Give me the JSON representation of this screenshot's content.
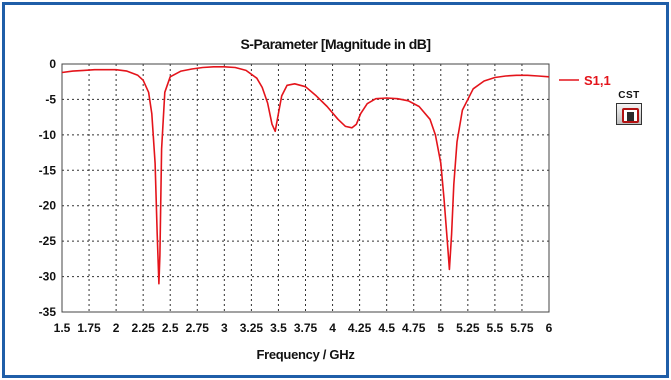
{
  "chart_data": {
    "type": "line",
    "title": "S-Parameter [Magnitude in dB]",
    "xlabel": "Frequency / GHz",
    "ylabel": "",
    "xlim": [
      1.5,
      6
    ],
    "ylim": [
      -35,
      0
    ],
    "x_ticks": [
      "1.5",
      "1.75",
      "2",
      "2.25",
      "2.5",
      "2.75",
      "3",
      "3.25",
      "3.5",
      "3.75",
      "4",
      "4.25",
      "4.5",
      "4.75",
      "5",
      "5.25",
      "5.5",
      "5.75",
      "6"
    ],
    "y_ticks": [
      "0",
      "-5",
      "-10",
      "-15",
      "-20",
      "-25",
      "-30",
      "-35"
    ],
    "grid": true,
    "legend_position": "right",
    "series": [
      {
        "name": "S1,1",
        "color": "#e4141b",
        "x": [
          1.5,
          1.6,
          1.7,
          1.8,
          1.9,
          2.0,
          2.1,
          2.2,
          2.25,
          2.3,
          2.33,
          2.36,
          2.38,
          2.395,
          2.405,
          2.42,
          2.45,
          2.5,
          2.6,
          2.7,
          2.8,
          2.9,
          3.0,
          3.1,
          3.2,
          3.3,
          3.35,
          3.4,
          3.44,
          3.47,
          3.5,
          3.53,
          3.58,
          3.65,
          3.75,
          3.85,
          3.95,
          4.05,
          4.12,
          4.18,
          4.22,
          4.26,
          4.32,
          4.4,
          4.5,
          4.6,
          4.7,
          4.8,
          4.9,
          4.95,
          5.0,
          5.03,
          5.06,
          5.08,
          5.1,
          5.12,
          5.15,
          5.2,
          5.3,
          5.4,
          5.5,
          5.6,
          5.7,
          5.8,
          5.9,
          6.0
        ],
        "y": [
          -1.2,
          -1.0,
          -0.9,
          -0.8,
          -0.8,
          -0.8,
          -1.0,
          -1.6,
          -2.3,
          -4.0,
          -7.0,
          -14.0,
          -24.0,
          -31.0,
          -27.0,
          -12.0,
          -4.0,
          -1.8,
          -1.0,
          -0.7,
          -0.5,
          -0.4,
          -0.4,
          -0.5,
          -0.9,
          -2.0,
          -3.3,
          -5.5,
          -8.5,
          -9.5,
          -7.0,
          -4.5,
          -3.0,
          -2.8,
          -3.2,
          -4.5,
          -6.0,
          -7.8,
          -8.8,
          -9.0,
          -8.5,
          -7.0,
          -5.6,
          -4.9,
          -4.8,
          -4.9,
          -5.2,
          -6.0,
          -7.8,
          -10.0,
          -14.0,
          -19.0,
          -25.0,
          -29.0,
          -24.0,
          -17.0,
          -11.0,
          -6.5,
          -3.5,
          -2.4,
          -1.9,
          -1.7,
          -1.6,
          -1.6,
          -1.7,
          -1.8
        ]
      }
    ]
  },
  "logo": {
    "text": "CST"
  }
}
